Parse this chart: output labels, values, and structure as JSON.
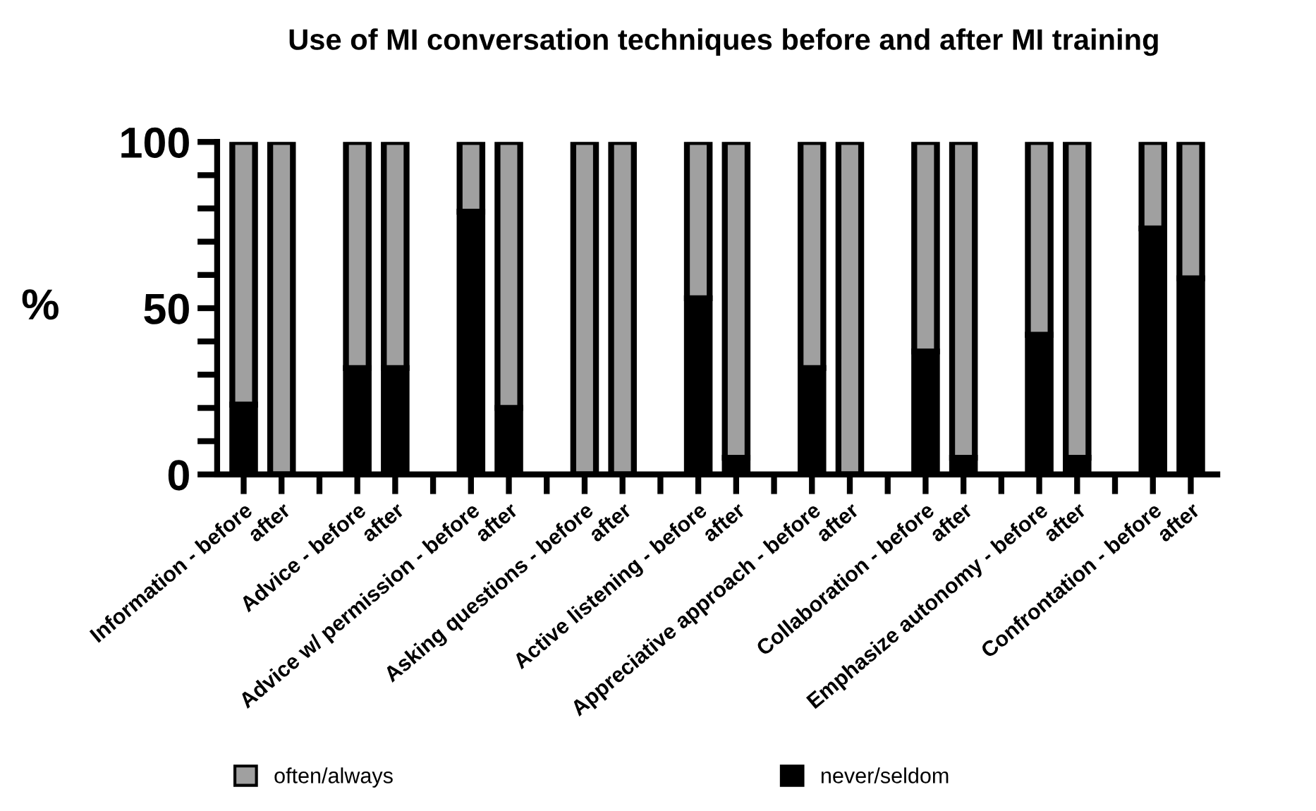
{
  "chart_data": {
    "type": "bar",
    "title": "Use of MI conversation techniques before and after MI training",
    "ylabel": "%",
    "categories": [
      "Information - before",
      "after",
      null,
      "Advice - before",
      "after",
      null,
      "Advice w/ permission - before",
      "after",
      null,
      "Asking questions - before",
      "after",
      null,
      "Active listening - before",
      "after",
      null,
      "Appreciative approach - before",
      "after",
      null,
      "Collaboration - before",
      "after",
      null,
      "Emphasize autonomy - before",
      "after",
      null,
      "Confrontation - before",
      "after"
    ],
    "series": [
      {
        "name": "never/seldom",
        "color": "#000000",
        "values": [
          21,
          0,
          null,
          32,
          32,
          null,
          79,
          20,
          null,
          0,
          0,
          null,
          53,
          5,
          null,
          32,
          0,
          null,
          37,
          5,
          null,
          42,
          5,
          null,
          74,
          59
        ]
      },
      {
        "name": "often/always",
        "color": "#a0a0a0",
        "values": [
          79,
          100,
          null,
          68,
          68,
          null,
          21,
          80,
          null,
          100,
          100,
          null,
          47,
          95,
          null,
          68,
          100,
          null,
          63,
          95,
          null,
          58,
          95,
          null,
          26,
          41
        ]
      }
    ],
    "stacked": true,
    "ylim": [
      0,
      100
    ],
    "yticks": [
      0,
      {
        "value": 10,
        "label": null
      },
      {
        "value": 20,
        "label": null
      },
      {
        "value": 30,
        "label": null
      },
      {
        "value": 40,
        "label": null
      },
      50,
      {
        "value": 60,
        "label": null
      },
      {
        "value": 70,
        "label": null
      },
      {
        "value": 80,
        "label": null
      },
      {
        "value": 90,
        "label": null
      },
      100
    ],
    "legend": "bottom",
    "grid": false
  }
}
